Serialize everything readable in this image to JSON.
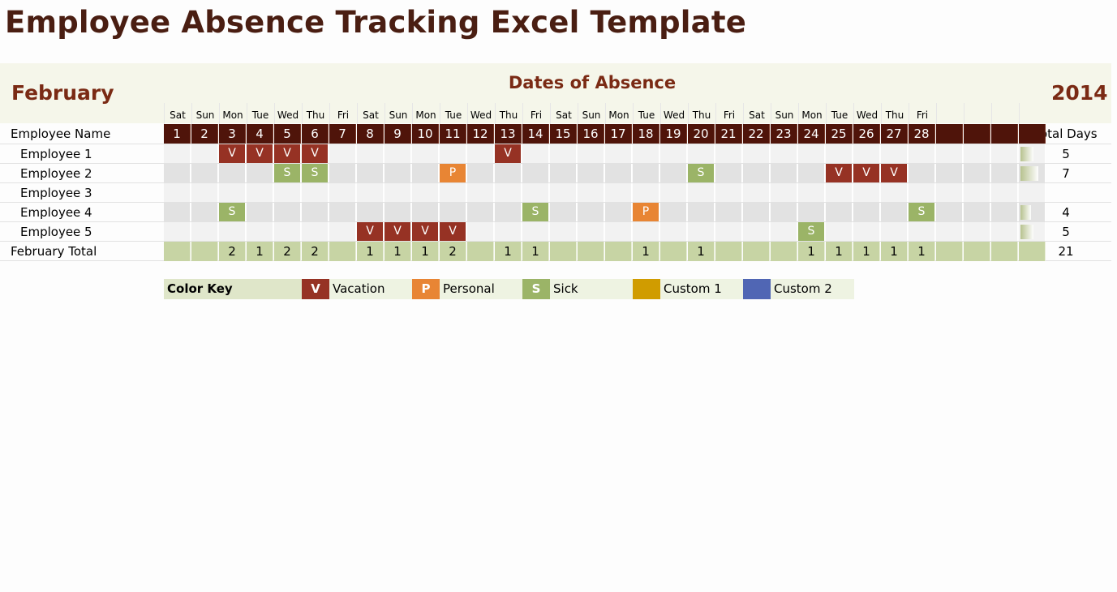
{
  "title": "Employee Absence Tracking Excel Template",
  "month": "February",
  "year": "2014",
  "dates_title": "Dates of Absence",
  "colors": {
    "vacation": "#963224",
    "personal": "#e88534",
    "sick": "#9bb467",
    "custom1": "#d09c00",
    "custom2": "#5066b4",
    "header": "#4f140a"
  },
  "days_of_week": [
    "Sat",
    "Sun",
    "Mon",
    "Tue",
    "Wed",
    "Thu",
    "Fri",
    "Sat",
    "Sun",
    "Mon",
    "Tue",
    "Wed",
    "Thu",
    "Fri",
    "Sat",
    "Sun",
    "Mon",
    "Tue",
    "Wed",
    "Thu",
    "Fri",
    "Sat",
    "Sun",
    "Mon",
    "Tue",
    "Wed",
    "Thu",
    "Fri",
    "",
    "",
    "",
    ""
  ],
  "day_numbers": [
    "1",
    "2",
    "3",
    "4",
    "5",
    "6",
    "7",
    "8",
    "9",
    "10",
    "11",
    "12",
    "13",
    "14",
    "15",
    "16",
    "17",
    "18",
    "19",
    "20",
    "21",
    "22",
    "23",
    "24",
    "25",
    "26",
    "27",
    "28",
    "",
    "",
    "",
    ""
  ],
  "header": {
    "employee_name": "Employee Name",
    "total_days": "Total Days"
  },
  "employees": [
    {
      "name": "Employee 1",
      "total": "5",
      "marks": {
        "3": "V",
        "4": "V",
        "5": "V",
        "6": "V",
        "13": "V"
      }
    },
    {
      "name": "Employee 2",
      "total": "7",
      "marks": {
        "5": "S",
        "6": "S",
        "11": "P",
        "20": "S",
        "25": "V",
        "26": "V",
        "27": "V"
      }
    },
    {
      "name": "Employee 3",
      "total": "",
      "marks": {}
    },
    {
      "name": "Employee 4",
      "total": "4",
      "marks": {
        "3": "S",
        "14": "S",
        "18": "P",
        "28": "S"
      }
    },
    {
      "name": "Employee 5",
      "total": "5",
      "marks": {
        "8": "V",
        "9": "V",
        "10": "V",
        "11": "V",
        "24": "S"
      }
    }
  ],
  "month_total": {
    "label": "February Total",
    "values": [
      "",
      "",
      "2",
      "1",
      "2",
      "2",
      "",
      "1",
      "1",
      "1",
      "2",
      "",
      "1",
      "1",
      "",
      "",
      "",
      "1",
      "",
      "1",
      "",
      "",
      "",
      "1",
      "1",
      "1",
      "1",
      "1",
      "",
      "",
      "",
      ""
    ],
    "total": "21"
  },
  "color_key": {
    "label": "Color Key",
    "items": [
      {
        "code": "V",
        "label": "Vacation",
        "color": "#963224"
      },
      {
        "code": "P",
        "label": "Personal",
        "color": "#e88534"
      },
      {
        "code": "S",
        "label": "Sick",
        "color": "#9bb467"
      },
      {
        "code": "",
        "label": "Custom 1",
        "color": "#d09c00"
      },
      {
        "code": "",
        "label": "Custom 2",
        "color": "#5066b4"
      }
    ]
  }
}
